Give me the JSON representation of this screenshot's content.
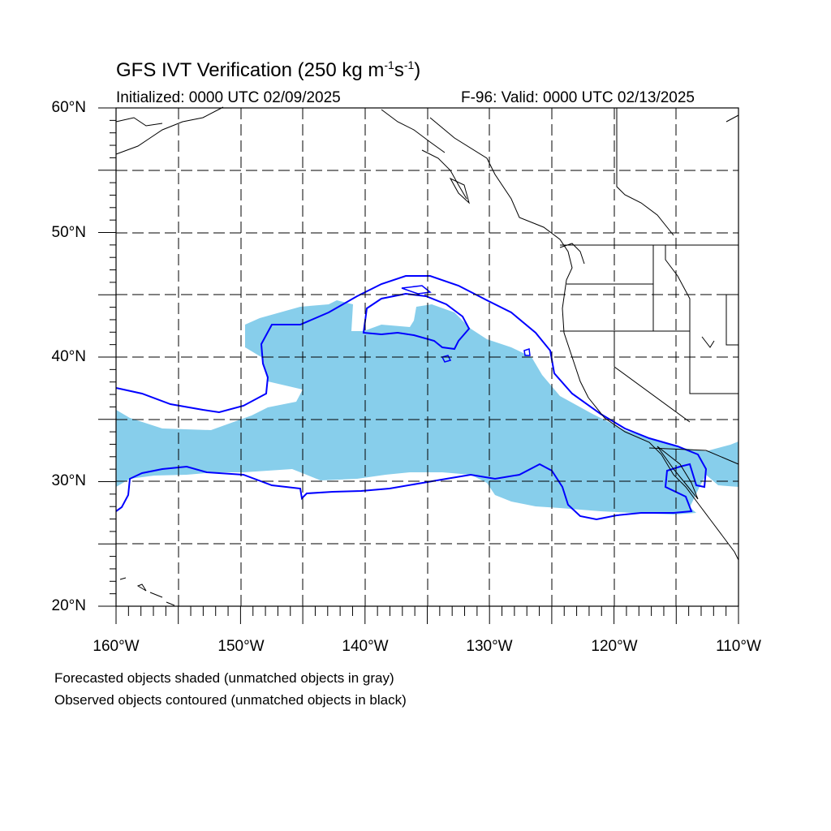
{
  "title": {
    "main": "GFS IVT Verification (250 kg m",
    "sup1": "-1",
    "mid": "s",
    "sup2": "-1",
    "end": ")"
  },
  "initialized": "Initialized: 0000 UTC 02/09/2025",
  "valid": "F-96: Valid: 0000 UTC 02/13/2025",
  "lat_labels": [
    "60°N",
    "50°N",
    "40°N",
    "30°N",
    "20°N"
  ],
  "lon_labels": [
    "160°W",
    "150°W",
    "140°W",
    "130°W",
    "120°W",
    "110°W"
  ],
  "notes": [
    "Forecasted objects shaded (unmatched objects in gray)",
    "Observed objects contoured (unmatched objects in black)"
  ],
  "colors": {
    "forecast_fill": "#87ceeb",
    "observed_contour": "#0000ff",
    "coastline": "#000000",
    "grid": "#000000"
  },
  "map": {
    "lat_range": [
      20,
      60
    ],
    "lon_range": [
      -160,
      -110
    ],
    "grid_spacing_deg": 5,
    "grid_style": "dashed"
  }
}
